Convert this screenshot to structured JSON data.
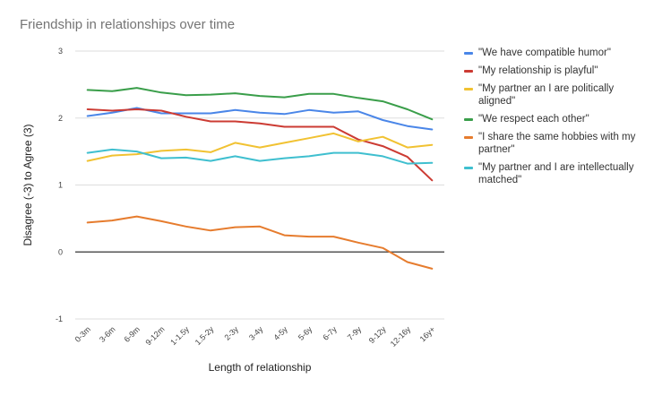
{
  "chart_data": {
    "type": "line",
    "title": "Friendship in relationships over time",
    "xlabel": "Length of relationship",
    "ylabel": "Disagree (-3) to Agree (3)",
    "categories": [
      "0-3m",
      "3-6m",
      "6-9m",
      "9-12m",
      "1-1.5y",
      "1.5-2y",
      "2-3y",
      "3-4y",
      "4-5y",
      "5-6y",
      "6-7y",
      "7-9y",
      "9-12y",
      "12-16y",
      "16y+"
    ],
    "ylim": [
      -1,
      3
    ],
    "yticks": [
      "-1",
      "0",
      "1",
      "2",
      "3"
    ],
    "grid": true,
    "legend_position": "right",
    "series": [
      {
        "name": "\"We have compatible humor\"",
        "color": "#4a86e8",
        "values": [
          2.03,
          2.08,
          2.15,
          2.07,
          2.07,
          2.07,
          2.12,
          2.08,
          2.06,
          2.12,
          2.08,
          2.1,
          1.97,
          1.88,
          1.83
        ]
      },
      {
        "name": "\"My relationship is playful\"",
        "color": "#cc3b33",
        "values": [
          2.13,
          2.11,
          2.13,
          2.11,
          2.02,
          1.95,
          1.95,
          1.92,
          1.87,
          1.87,
          1.87,
          1.68,
          1.58,
          1.42,
          1.07
        ]
      },
      {
        "name": "\"My partner an I are politically aligned\"",
        "color": "#f1c232",
        "values": [
          1.36,
          1.44,
          1.46,
          1.51,
          1.53,
          1.49,
          1.63,
          1.56,
          1.63,
          1.7,
          1.77,
          1.65,
          1.72,
          1.56,
          1.6
        ]
      },
      {
        "name": "\"We respect each other\"",
        "color": "#3a9e4a",
        "values": [
          2.42,
          2.4,
          2.45,
          2.38,
          2.34,
          2.35,
          2.37,
          2.33,
          2.31,
          2.36,
          2.36,
          2.3,
          2.25,
          2.13,
          1.98
        ]
      },
      {
        "name": "\"I share the same hobbies with my partner\"",
        "color": "#e67c2e",
        "values": [
          0.44,
          0.47,
          0.53,
          0.46,
          0.38,
          0.32,
          0.37,
          0.38,
          0.25,
          0.23,
          0.23,
          0.14,
          0.06,
          -0.15,
          -0.25
        ]
      },
      {
        "name": "\"My partner and I are intellectually matched\"",
        "color": "#3fbfcf",
        "values": [
          1.48,
          1.53,
          1.5,
          1.4,
          1.41,
          1.36,
          1.43,
          1.36,
          1.4,
          1.43,
          1.48,
          1.48,
          1.43,
          1.32,
          1.33
        ]
      }
    ]
  }
}
